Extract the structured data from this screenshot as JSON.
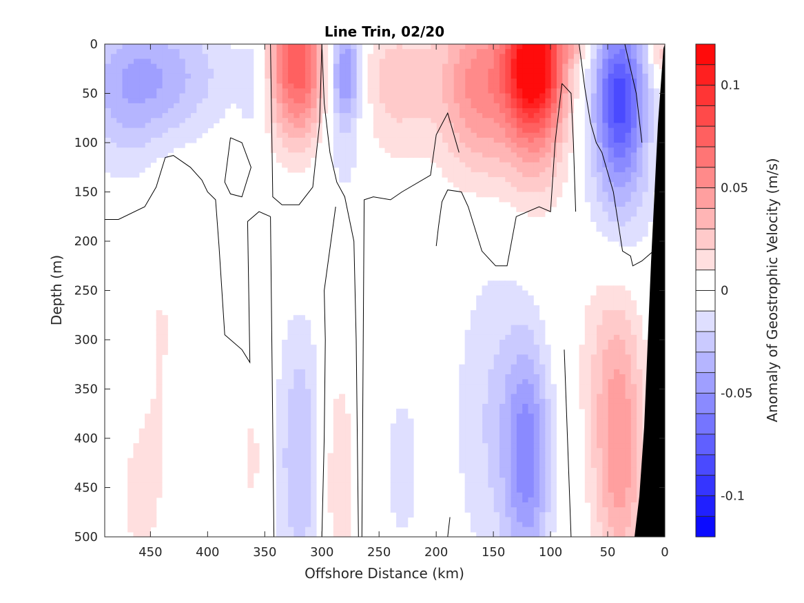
{
  "chart_data": {
    "type": "heatmap",
    "subtype": "filled-contour",
    "title": "Line Trin, 02/20",
    "xlabel": "Offshore Distance (km)",
    "ylabel": "Depth (m)",
    "colorbar_label": "Anomaly of Geostrophic Velocity (m/s)",
    "x_reversed": true,
    "y_reversed": true,
    "xlim": [
      490,
      0
    ],
    "ylim": [
      0,
      500
    ],
    "x_ticks": [
      450,
      400,
      350,
      300,
      250,
      200,
      150,
      100,
      50,
      0
    ],
    "y_ticks": [
      0,
      50,
      100,
      150,
      200,
      250,
      300,
      350,
      400,
      450,
      500
    ],
    "x_tick_labels": [
      "450",
      "400",
      "350",
      "300",
      "250",
      "200",
      "150",
      "100",
      "50",
      "0"
    ],
    "y_tick_labels": [
      "0",
      "50",
      "100",
      "150",
      "200",
      "250",
      "300",
      "350",
      "400",
      "450",
      "500"
    ],
    "colorbar": {
      "range": [
        -0.12,
        0.12
      ],
      "levels": 24,
      "ticks": [
        0.1,
        0.05,
        0,
        -0.05,
        -0.1
      ],
      "tick_labels": [
        "0.1",
        "0.05",
        "0",
        "-0.05",
        "-0.1"
      ],
      "negative_color": "#0000ff",
      "positive_color": "#ff0000",
      "zero_color": "#ffffff"
    },
    "cores": [
      {
        "x": 440,
        "depth": 30,
        "value": -0.03,
        "sx": 45,
        "sy": 45
      },
      {
        "x": 470,
        "depth": 60,
        "value": -0.02,
        "sx": 30,
        "sy": 60
      },
      {
        "x": 360,
        "depth": 40,
        "value": -0.015,
        "sx": 8,
        "sy": 40
      },
      {
        "x": 322,
        "depth": 20,
        "value": 0.08,
        "sx": 18,
        "sy": 55
      },
      {
        "x": 280,
        "depth": 25,
        "value": -0.05,
        "sx": 10,
        "sy": 35
      },
      {
        "x": 280,
        "depth": 80,
        "value": -0.02,
        "sx": 14,
        "sy": 60
      },
      {
        "x": 235,
        "depth": 40,
        "value": 0.025,
        "sx": 30,
        "sy": 55
      },
      {
        "x": 165,
        "depth": 40,
        "value": 0.05,
        "sx": 22,
        "sy": 65
      },
      {
        "x": 115,
        "depth": 15,
        "value": 0.11,
        "sx": 18,
        "sy": 45
      },
      {
        "x": 115,
        "depth": 80,
        "value": 0.04,
        "sx": 22,
        "sy": 60
      },
      {
        "x": 80,
        "depth": 5,
        "value": 0.02,
        "sx": 10,
        "sy": 10
      },
      {
        "x": 40,
        "depth": 50,
        "value": -0.08,
        "sx": 16,
        "sy": 55
      },
      {
        "x": 40,
        "depth": 150,
        "value": -0.025,
        "sx": 22,
        "sy": 60
      },
      {
        "x": 5,
        "depth": 10,
        "value": 0.03,
        "sx": 5,
        "sy": 15
      },
      {
        "x": 120,
        "depth": 420,
        "value": -0.05,
        "sx": 14,
        "sy": 80
      },
      {
        "x": 150,
        "depth": 380,
        "value": -0.02,
        "sx": 25,
        "sy": 120
      },
      {
        "x": 320,
        "depth": 420,
        "value": -0.03,
        "sx": 14,
        "sy": 100
      },
      {
        "x": 230,
        "depth": 430,
        "value": -0.012,
        "sx": 18,
        "sy": 100
      },
      {
        "x": 285,
        "depth": 440,
        "value": 0.02,
        "sx": 10,
        "sy": 80
      },
      {
        "x": 360,
        "depth": 420,
        "value": 0.012,
        "sx": 6,
        "sy": 80
      },
      {
        "x": 40,
        "depth": 420,
        "value": 0.045,
        "sx": 16,
        "sy": 90
      },
      {
        "x": 50,
        "depth": 300,
        "value": 0.015,
        "sx": 20,
        "sy": 80
      },
      {
        "x": 460,
        "depth": 460,
        "value": 0.012,
        "sx": 18,
        "sy": 70
      },
      {
        "x": 440,
        "depth": 280,
        "value": 0.01,
        "sx": 14,
        "sy": 110
      }
    ],
    "zero_contours": [
      [
        [
          490,
          178
        ],
        [
          478,
          178
        ],
        [
          455,
          165
        ],
        [
          445,
          145
        ],
        [
          437,
          115
        ],
        [
          430,
          113
        ],
        [
          415,
          125
        ],
        [
          405,
          138
        ],
        [
          400,
          150
        ],
        [
          393,
          158
        ],
        [
          390,
          205
        ],
        [
          385,
          295
        ],
        [
          370,
          310
        ],
        [
          363,
          323
        ],
        [
          365,
          180
        ],
        [
          355,
          170
        ],
        [
          345,
          175
        ]
      ],
      [
        [
          345,
          175
        ],
        [
          342,
          500
        ]
      ],
      [
        [
          380,
          95
        ],
        [
          370,
          100
        ],
        [
          362,
          125
        ],
        [
          370,
          155
        ],
        [
          380,
          152
        ],
        [
          385,
          140
        ],
        [
          380,
          95
        ]
      ],
      [
        [
          345,
          0
        ],
        [
          343,
          155
        ],
        [
          335,
          163
        ],
        [
          320,
          163
        ],
        [
          308,
          145
        ],
        [
          302,
          80
        ],
        [
          300,
          0
        ]
      ],
      [
        [
          300,
          0
        ],
        [
          298,
          60
        ],
        [
          293,
          110
        ],
        [
          287,
          140
        ],
        [
          280,
          155
        ],
        [
          272,
          200
        ],
        [
          270,
          300
        ],
        [
          268,
          500
        ]
      ],
      [
        [
          300,
          500
        ],
        [
          298,
          400
        ],
        [
          297,
          300
        ],
        [
          298,
          250
        ],
        [
          288,
          165
        ]
      ],
      [
        [
          265,
          500
        ],
        [
          263,
          158
        ],
        [
          255,
          155
        ],
        [
          240,
          158
        ],
        [
          230,
          150
        ],
        [
          205,
          133
        ],
        [
          200,
          92
        ],
        [
          190,
          70
        ],
        [
          180,
          110
        ]
      ],
      [
        [
          190,
          500
        ],
        [
          188,
          480
        ]
      ],
      [
        [
          200,
          205
        ],
        [
          198,
          185
        ],
        [
          195,
          160
        ],
        [
          190,
          148
        ],
        [
          178,
          150
        ],
        [
          172,
          165
        ],
        [
          160,
          210
        ],
        [
          148,
          225
        ],
        [
          138,
          225
        ],
        [
          130,
          175
        ],
        [
          110,
          165
        ],
        [
          100,
          170
        ],
        [
          96,
          100
        ],
        [
          90,
          40
        ]
      ],
      [
        [
          90,
          40
        ],
        [
          82,
          50
        ],
        [
          80,
          100
        ],
        [
          78,
          170
        ]
      ],
      [
        [
          88,
          310
        ],
        [
          82,
          500
        ]
      ],
      [
        [
          75,
          0
        ],
        [
          70,
          45
        ],
        [
          65,
          80
        ],
        [
          60,
          100
        ],
        [
          55,
          110
        ],
        [
          45,
          150
        ],
        [
          37,
          210
        ],
        [
          30,
          215
        ],
        [
          28,
          225
        ],
        [
          20,
          220
        ],
        [
          10,
          210
        ],
        [
          5,
          200
        ]
      ],
      [
        [
          20,
          100
        ],
        [
          25,
          50
        ],
        [
          30,
          25
        ],
        [
          35,
          0
        ]
      ]
    ]
  }
}
